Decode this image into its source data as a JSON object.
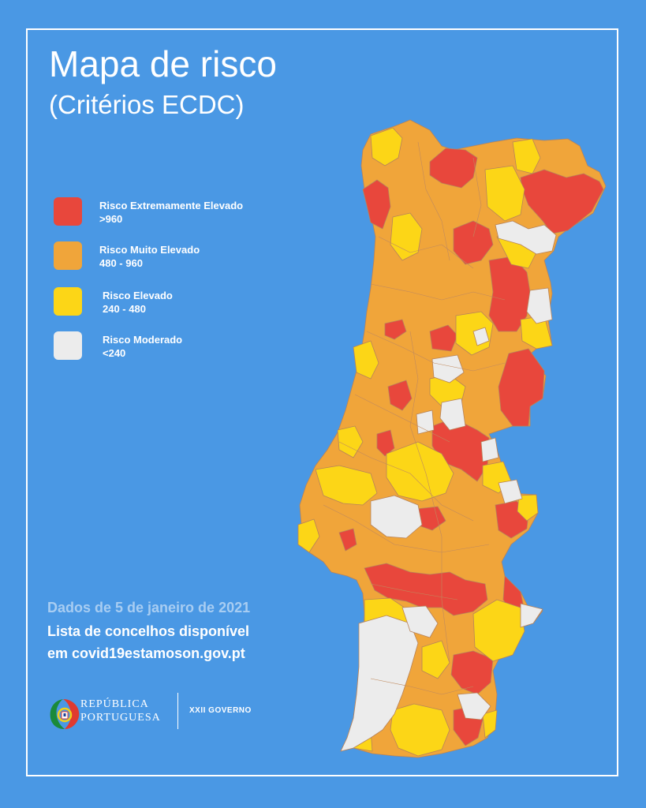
{
  "header": {
    "title": "Mapa de risco",
    "subtitle": "(Critérios ECDC)"
  },
  "legend": [
    {
      "label": "Risco Extremamente Elevado",
      "range": ">960",
      "color": "#e8473c"
    },
    {
      "label": "Risco Muito Elevado",
      "range": "480 - 960",
      "color": "#f0a53a"
    },
    {
      "label": "Risco Elevado",
      "range": "240 - 480",
      "color": "#fcd617"
    },
    {
      "label": "Risco Moderado",
      "range": "<240",
      "color": "#ececec"
    }
  ],
  "notes": {
    "date": "Dados de 5 de janeiro de 2021",
    "list": "Lista de concelhos disponível",
    "url": "em covid19estamoson.gov.pt"
  },
  "footer": {
    "republica": "REPÚBLICA",
    "portuguesa": "PORTUGUESA",
    "governo": "XXII GOVERNO"
  },
  "colors": {
    "background": "#4a98e4",
    "frame": "#ffffff",
    "boundary": "#b7835a"
  }
}
